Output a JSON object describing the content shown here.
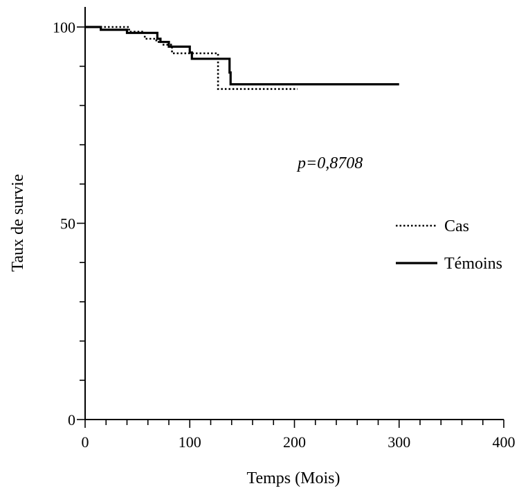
{
  "chart_data": {
    "type": "line",
    "title": "",
    "xlabel": "Temps (Mois)",
    "ylabel": "Taux de survie",
    "xlim": [
      0,
      400
    ],
    "ylim": [
      0,
      100
    ],
    "x_ticks": [
      "0",
      "100",
      "200",
      "300",
      "400"
    ],
    "y_ticks": [
      "0",
      "50",
      "100"
    ],
    "x_minor_step": 20,
    "y_minor_step": 10,
    "grid": false,
    "legend_position": "right",
    "annotation": "p=0,8708",
    "series": [
      {
        "name": "Cas",
        "style": "dotted",
        "color": "#000000",
        "x": [
          0,
          42,
          57,
          68,
          74,
          83,
          127,
          203
        ],
        "y": [
          100,
          98.8,
          97.0,
          96.2,
          95.5,
          93.3,
          84.2,
          84.2
        ]
      },
      {
        "name": "Témoins",
        "style": "solid",
        "color": "#000000",
        "x": [
          0,
          15,
          40,
          69,
          72,
          80,
          100,
          102,
          138,
          139,
          300
        ],
        "y": [
          100,
          99.3,
          98.5,
          97.0,
          96.2,
          95.0,
          93.5,
          91.9,
          88.4,
          85.4,
          85.4
        ]
      }
    ]
  }
}
